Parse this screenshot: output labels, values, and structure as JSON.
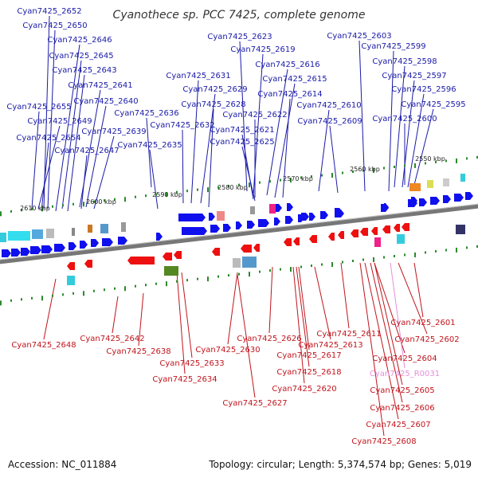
{
  "title": "Cyanothece sp. PCC 7425, complete genome",
  "accession": "Accession: NC_011884",
  "summary": "Topology: circular; Length: 5,374,574 bp; Genes: 5,019",
  "kbp_labels": [
    "2610 kbp",
    "2600 kbp",
    "2590 kbp",
    "2580 kbp",
    "2570 kbp",
    "2560 kbp",
    "2550 kbp"
  ],
  "forward_genes": [
    "Cyan7425_2652",
    "Cyan7425_2650",
    "Cyan7425_2646",
    "Cyan7425_2645",
    "Cyan7425_2643",
    "Cyan7425_2641",
    "Cyan7425_2640",
    "Cyan7425_2655",
    "Cyan7425_2649",
    "Cyan7425_2636",
    "Cyan7425_2639",
    "Cyan7425_2654",
    "Cyan7425_2647",
    "Cyan7425_2635",
    "Cyan7425_2631",
    "Cyan7425_2629",
    "Cyan7425_2628",
    "Cyan7425_2632",
    "Cyan7425_2623",
    "Cyan7425_2619",
    "Cyan7425_2616",
    "Cyan7425_2615",
    "Cyan7425_2614",
    "Cyan7425_2622",
    "Cyan7425_2621",
    "Cyan7425_2625",
    "Cyan7425_2610",
    "Cyan7425_2609",
    "Cyan7425_2603",
    "Cyan7425_2599",
    "Cyan7425_2598",
    "Cyan7425_2597",
    "Cyan7425_2596",
    "Cyan7425_2595",
    "Cyan7425_2600"
  ],
  "reverse_genes": [
    "Cyan7425_2601",
    "Cyan7425_2611",
    "Cyan7425_2602",
    "Cyan7425_2642",
    "Cyan7425_2626",
    "Cyan7425_2613",
    "Cyan7425_2648",
    "Cyan7425_2638",
    "Cyan7425_2630",
    "Cyan7425_2617",
    "Cyan7425_2604",
    "Cyan7425_2633",
    "Cyan7425_2618",
    "Cyan7425_2634",
    "Cyan7425_2605",
    "Cyan7425_2620",
    "Cyan7425_2627",
    "Cyan7425_2606",
    "Cyan7425_2607",
    "Cyan7425_2608"
  ],
  "rna_genes": [
    "Cyan7425_R0031"
  ],
  "colors": {
    "forward": "#1a1aa8",
    "reverse": "#c0141c",
    "rna": "#e58fd8",
    "arrow_forward": "#1010ee",
    "arrow_reverse": "#ee1010",
    "backbone": "#777777",
    "ticks": "#2a8a2a"
  }
}
